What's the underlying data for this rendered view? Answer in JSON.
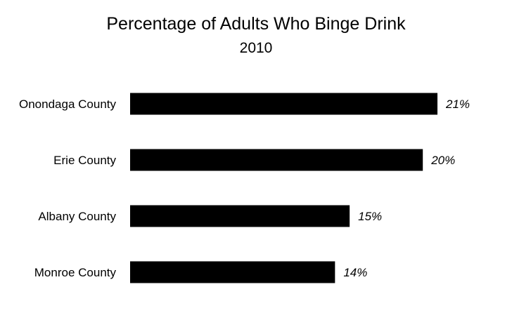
{
  "chart_data": {
    "type": "bar",
    "orientation": "horizontal",
    "title": "Percentage of Adults Who Binge Drink",
    "subtitle": "2010",
    "categories": [
      "Onondaga County",
      "Erie County",
      "Albany County",
      "Monroe County"
    ],
    "values": [
      21,
      20,
      15,
      14
    ],
    "value_labels": [
      "21%",
      "20%",
      "15%",
      "14%"
    ],
    "xlim": [
      0,
      21
    ],
    "grid": false,
    "legend": "none",
    "bar_color": "#000000"
  }
}
